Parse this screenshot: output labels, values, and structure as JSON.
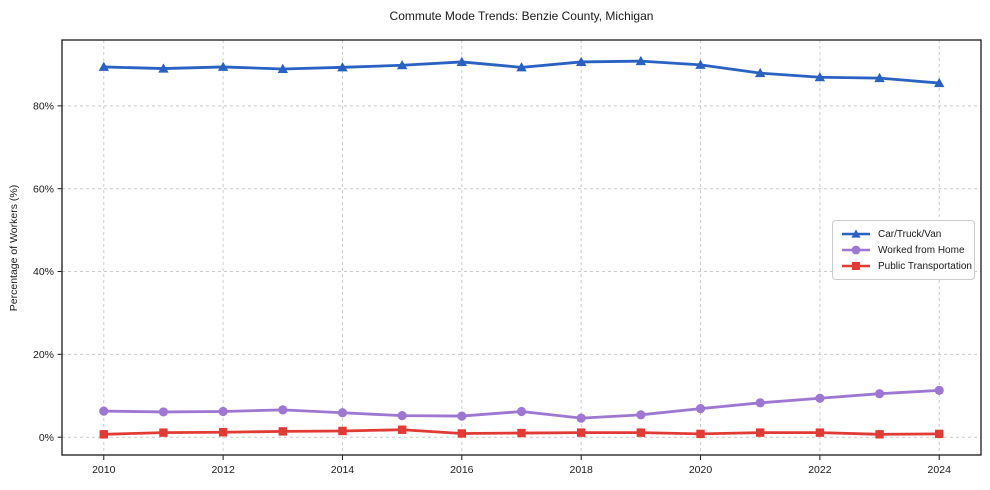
{
  "chart_data": {
    "type": "line",
    "title": "Commute Mode Trends: Benzie County, Michigan",
    "ylabel": "Percentage of Workers (%)",
    "xlabel": "",
    "x": [
      2010,
      2011,
      2012,
      2013,
      2014,
      2015,
      2016,
      2017,
      2018,
      2019,
      2020,
      2021,
      2022,
      2023,
      2024
    ],
    "series": [
      {
        "name": "Car/Truck/Van",
        "color": "#2a62c3",
        "marker": "triangle",
        "values": [
          89.4,
          89.0,
          89.4,
          88.9,
          89.3,
          89.8,
          90.6,
          89.3,
          90.6,
          90.8,
          89.9,
          87.9,
          86.9,
          86.7,
          85.5
        ]
      },
      {
        "name": "Worked from Home",
        "color": "#9d77d2",
        "marker": "circle",
        "values": [
          6.3,
          6.1,
          6.2,
          6.6,
          5.9,
          5.2,
          5.1,
          6.2,
          4.6,
          5.4,
          6.9,
          8.3,
          9.4,
          10.5,
          11.3
        ]
      },
      {
        "name": "Public Transportation",
        "color": "#e23b36",
        "marker": "square",
        "values": [
          0.7,
          1.1,
          1.2,
          1.4,
          1.5,
          1.8,
          0.9,
          1.0,
          1.1,
          1.1,
          0.8,
          1.1,
          1.1,
          0.7,
          0.8
        ]
      }
    ],
    "x_ticks": {
      "values": [
        2010,
        2012,
        2014,
        2016,
        2018,
        2020,
        2022,
        2024
      ],
      "labels": [
        "2010",
        "2012",
        "2014",
        "2016",
        "2018",
        "2020",
        "2022",
        "2024"
      ]
    },
    "y_ticks": {
      "values": [
        0,
        20,
        40,
        60,
        80
      ],
      "labels": [
        "0%",
        "20%",
        "40%",
        "60%",
        "80%"
      ]
    },
    "xlim": [
      2009.3,
      2024.7
    ],
    "ylim": [
      -4.3,
      95.9
    ],
    "grid": true,
    "legend_position": "center-right"
  },
  "colors": {
    "grid": "#cccccc",
    "spine": "#1a1a1a",
    "text": "#1a1a1a"
  }
}
